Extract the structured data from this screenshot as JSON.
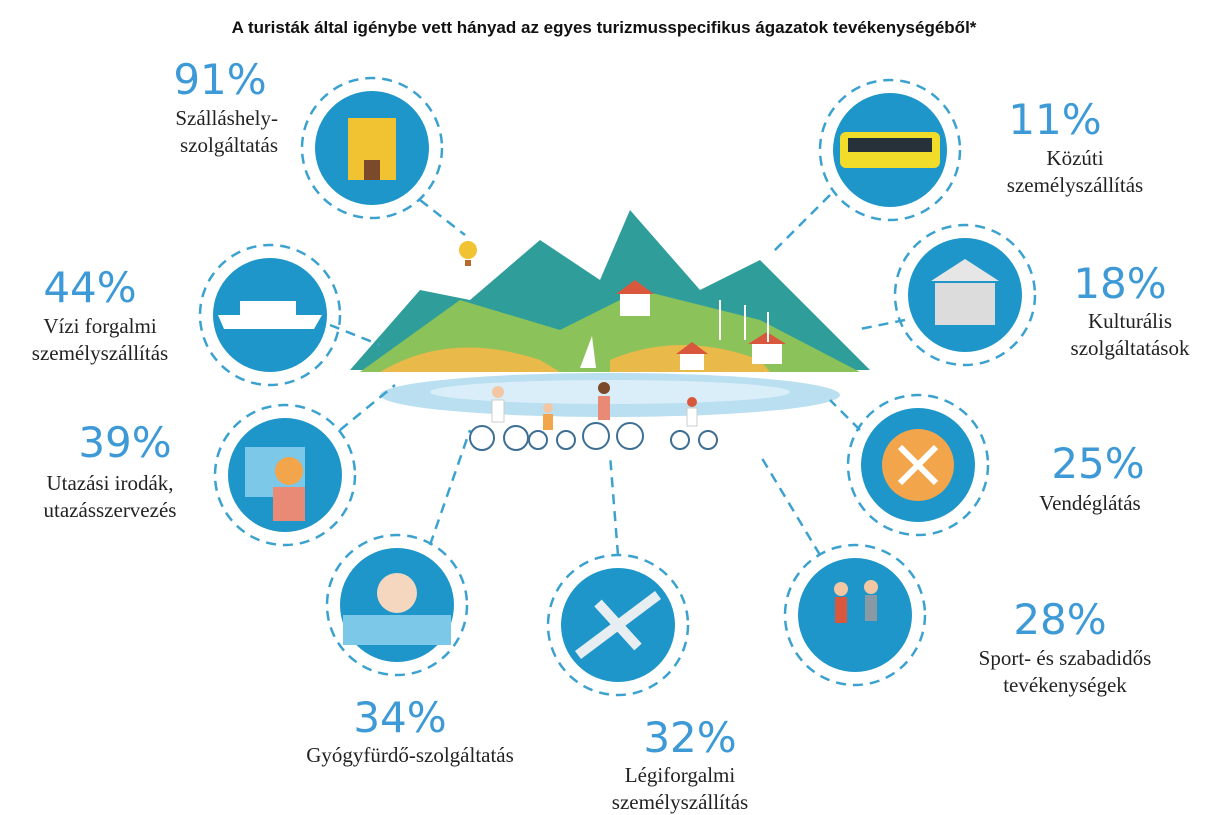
{
  "title": "A turisták által igénybe vett hányad az egyes turizmusspecifikus ágazatok tevékenységéből*",
  "items": [
    {
      "percent": "91%",
      "label": [
        "Szálláshely-",
        "szolgáltatás"
      ]
    },
    {
      "percent": "11%",
      "label": [
        "Közúti",
        "személyszállítás"
      ]
    },
    {
      "percent": "44%",
      "label": [
        "Vízi forgalmi",
        "személyszállítás"
      ]
    },
    {
      "percent": "18%",
      "label": [
        "Kulturális",
        "szolgáltatások"
      ]
    },
    {
      "percent": "39%",
      "label": [
        "Utazási irodák,",
        "utazásszervezés"
      ]
    },
    {
      "percent": "25%",
      "label": [
        "Vendéglátás"
      ]
    },
    {
      "percent": "34%",
      "label": [
        "Gyógyfürdő-szolgáltatás"
      ]
    },
    {
      "percent": "32%",
      "label": [
        "Légiforgalmi",
        "személyszállítás"
      ]
    },
    {
      "percent": "28%",
      "label": [
        "Sport- és szabadidős",
        "tevékenységek"
      ]
    }
  ]
}
